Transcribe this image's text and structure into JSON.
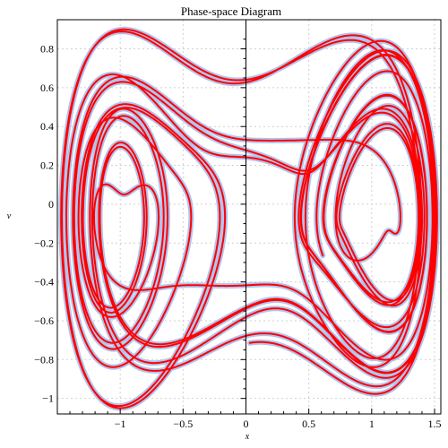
{
  "chart_data": {
    "type": "line",
    "title": "Phase-space Diagram",
    "xlabel": "x",
    "ylabel": "v",
    "xlim": [
      -1.5,
      1.55
    ],
    "ylim": [
      -1.08,
      0.95
    ],
    "x_ticks": [
      -1,
      -0.5,
      0,
      0.5,
      1,
      1.5
    ],
    "x_tick_labels": [
      "−1",
      "−0.5",
      "0",
      "0.5",
      "1",
      "1.5"
    ],
    "y_ticks": [
      0.8,
      0.6,
      0.4,
      0.2,
      0,
      -0.2,
      -0.4,
      -0.6,
      -0.8,
      -1
    ],
    "y_tick_labels": [
      "0.8",
      "0.6",
      "0.4",
      "0.2",
      "0",
      "−0.2",
      "−0.4",
      "−0.6",
      "−0.8",
      "−1"
    ],
    "grid": true,
    "series": [
      {
        "color": "#ff0000",
        "halo_color": "#b0c4ee",
        "description": "Chaotic trajectory of a forced double-well (Duffing) oscillator circling both wells at x≈−1 and x≈+1",
        "x_range": [
          -1.47,
          1.52
        ],
        "v_range": [
          -1.05,
          0.9
        ]
      }
    ]
  }
}
